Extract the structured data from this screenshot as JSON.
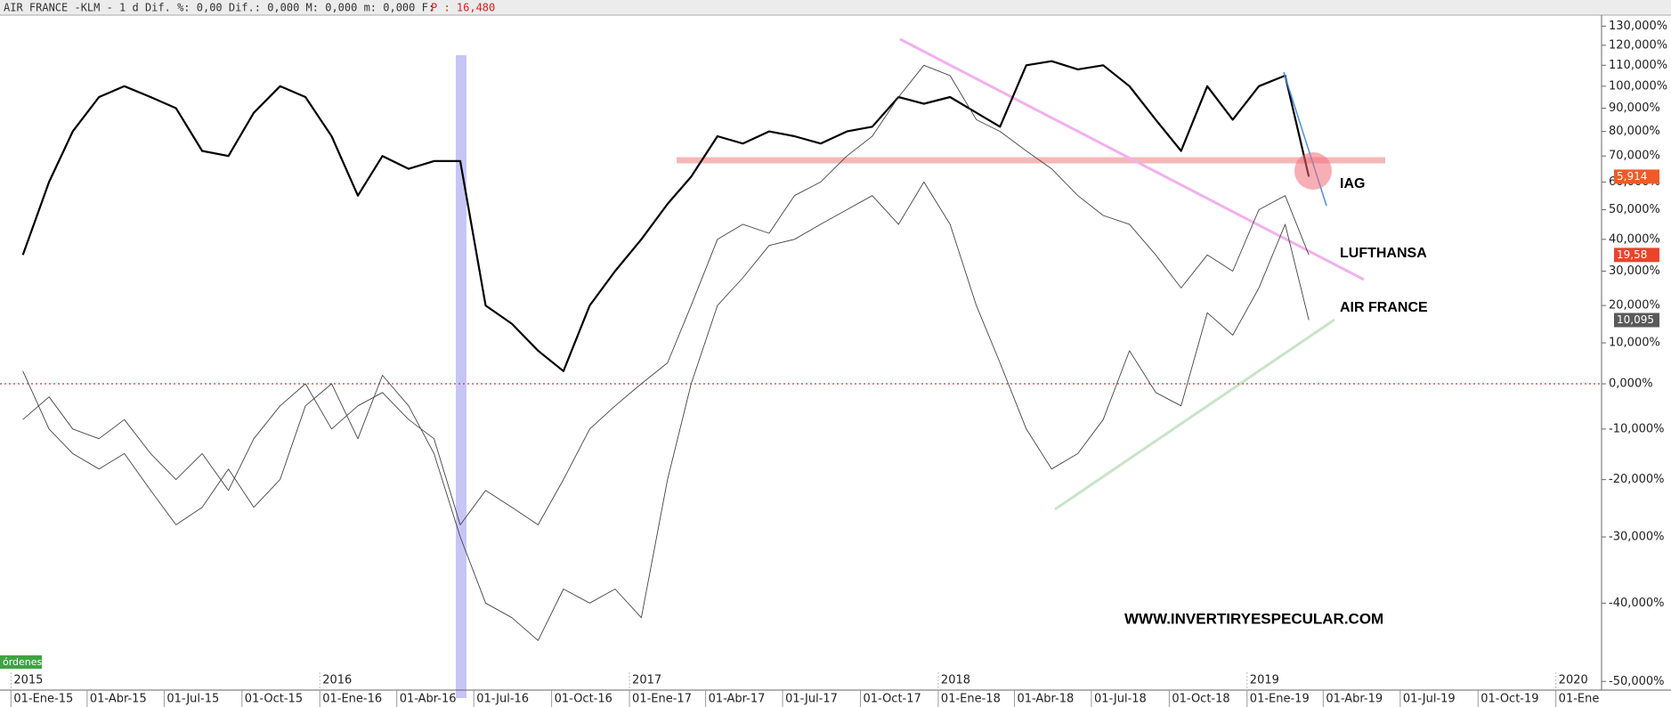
{
  "chart_data": {
    "type": "line",
    "header_text": "AIR FRANCE -KLM -  1 d Dif. %: 0,00 Dif.: 0,000 M: 0,000 m: 0,000 F:",
    "header_price": "P : 16,480",
    "orders_label": "órdenes",
    "website": "WWW.INVERTIRYESPECULAR.COM",
    "log_scale": true,
    "reference_line": 0,
    "x": [
      "2015-01",
      "2015-02",
      "2015-03",
      "2015-04",
      "2015-05",
      "2015-06",
      "2015-07",
      "2015-08",
      "2015-09",
      "2015-10",
      "2015-11",
      "2015-12",
      "2016-01",
      "2016-02",
      "2016-03",
      "2016-04",
      "2016-05",
      "2016-06",
      "2016-07",
      "2016-08",
      "2016-09",
      "2016-10",
      "2016-11",
      "2016-12",
      "2017-01",
      "2017-02",
      "2017-03",
      "2017-04",
      "2017-05",
      "2017-06",
      "2017-07",
      "2017-08",
      "2017-09",
      "2017-10",
      "2017-11",
      "2017-12",
      "2018-01",
      "2018-02",
      "2018-03",
      "2018-04",
      "2018-05",
      "2018-06",
      "2018-07",
      "2018-08",
      "2018-09",
      "2018-10",
      "2018-11",
      "2018-12",
      "2019-01",
      "2019-02",
      "2019-03"
    ],
    "series": [
      {
        "name": "IAG",
        "color": "#000000",
        "last_label": "5,914",
        "label_color": "#f05a28",
        "values": [
          35,
          60,
          80,
          95,
          100,
          95,
          90,
          72,
          70,
          88,
          100,
          95,
          78,
          55,
          70,
          65,
          68,
          68,
          20,
          15,
          8,
          3,
          20,
          30,
          40,
          52,
          62,
          78,
          75,
          80,
          78,
          75,
          80,
          82,
          95,
          92,
          95,
          88,
          82,
          110,
          112,
          108,
          110,
          100,
          85,
          72,
          100,
          85,
          100,
          105,
          62
        ]
      },
      {
        "name": "LUFTHANSA",
        "color": "#444444",
        "last_label": "19,58",
        "label_color": "#e8452c",
        "values": [
          -8,
          -3,
          -10,
          -12,
          -8,
          -15,
          -20,
          -15,
          -22,
          -12,
          -5,
          0,
          -10,
          -5,
          -2,
          -8,
          -12,
          -28,
          -22,
          -25,
          -28,
          -20,
          -10,
          -5,
          0,
          5,
          20,
          40,
          45,
          42,
          55,
          60,
          70,
          78,
          95,
          110,
          105,
          85,
          80,
          72,
          65,
          55,
          48,
          45,
          35,
          25,
          35,
          30,
          50,
          55,
          35
        ]
      },
      {
        "name": "AIR FRANCE",
        "color": "#444444",
        "last_label": "10,095",
        "label_color": "#5a5a5a",
        "values": [
          3,
          -10,
          -15,
          -18,
          -15,
          -22,
          -28,
          -25,
          -18,
          -25,
          -20,
          -5,
          0,
          -12,
          2,
          -5,
          -15,
          -30,
          -40,
          -42,
          -45,
          -38,
          -40,
          -38,
          -42,
          -20,
          0,
          20,
          28,
          38,
          40,
          45,
          50,
          55,
          45,
          60,
          45,
          20,
          5,
          -10,
          -18,
          -15,
          -8,
          8,
          -2,
          -5,
          18,
          12,
          25,
          45,
          16
        ]
      }
    ],
    "xlim": [
      "2014-12-19",
      "2020-02-24"
    ],
    "xticks": [
      {
        "value": "2015-01-01",
        "label": "01-Ene-15"
      },
      {
        "value": "2015-04-01",
        "label": "01-Abr-15"
      },
      {
        "value": "2015-07-01",
        "label": "01-Jul-15"
      },
      {
        "value": "2015-10-01",
        "label": "01-Oct-15"
      },
      {
        "value": "2016-01-01",
        "label": "01-Ene-16"
      },
      {
        "value": "2016-04-01",
        "label": "01-Abr-16"
      },
      {
        "value": "2016-07-01",
        "label": "01-Jul-16"
      },
      {
        "value": "2016-10-01",
        "label": "01-Oct-16"
      },
      {
        "value": "2017-01-01",
        "label": "01-Ene-17"
      },
      {
        "value": "2017-04-01",
        "label": "01-Abr-17"
      },
      {
        "value": "2017-07-01",
        "label": "01-Jul-17"
      },
      {
        "value": "2017-10-01",
        "label": "01-Oct-17"
      },
      {
        "value": "2018-01-01",
        "label": "01-Ene-18"
      },
      {
        "value": "2018-04-01",
        "label": "01-Abr-18"
      },
      {
        "value": "2018-07-01",
        "label": "01-Jul-18"
      },
      {
        "value": "2018-10-01",
        "label": "01-Oct-18"
      },
      {
        "value": "2019-01-01",
        "label": "01-Ene-19"
      },
      {
        "value": "2019-04-01",
        "label": "01-Abr-19"
      },
      {
        "value": "2019-07-01",
        "label": "01-Jul-19"
      },
      {
        "value": "2019-10-01",
        "label": "01-Oct-19"
      },
      {
        "value": "2020-01-01",
        "label": "01-Ene"
      }
    ],
    "year_ticks": [
      {
        "value": "2015-01-01",
        "label": "2015"
      },
      {
        "value": "2016-01-01",
        "label": "2016"
      },
      {
        "value": "2017-01-01",
        "label": "2017"
      },
      {
        "value": "2018-01-01",
        "label": "2018"
      },
      {
        "value": "2019-01-01",
        "label": "2019"
      },
      {
        "value": "2020-01-01",
        "label": "2020"
      }
    ],
    "ylim": [
      -51,
      136
    ],
    "yticks": [
      {
        "value": -50,
        "label": "-50,000%"
      },
      {
        "value": -40,
        "label": "-40,000%"
      },
      {
        "value": -30,
        "label": "-30,000%"
      },
      {
        "value": -20,
        "label": "-20,000%"
      },
      {
        "value": -10,
        "label": "-10,000%"
      },
      {
        "value": 0,
        "label": "0,000%"
      },
      {
        "value": 10,
        "label": "10,000%"
      },
      {
        "value": 20,
        "label": "20,000%"
      },
      {
        "value": 30,
        "label": "30,000%"
      },
      {
        "value": 40,
        "label": "40,000%"
      },
      {
        "value": 50,
        "label": "50,000%"
      },
      {
        "value": 60,
        "label": "60,000%"
      },
      {
        "value": 70,
        "label": "70,000%"
      },
      {
        "value": 80,
        "label": "80,000%"
      },
      {
        "value": 90,
        "label": "90,000%"
      },
      {
        "value": 100,
        "label": "100,000%"
      },
      {
        "value": 110,
        "label": "110,000%"
      },
      {
        "value": 120,
        "label": "120,000%"
      },
      {
        "value": 130,
        "label": "130,000%"
      }
    ]
  }
}
